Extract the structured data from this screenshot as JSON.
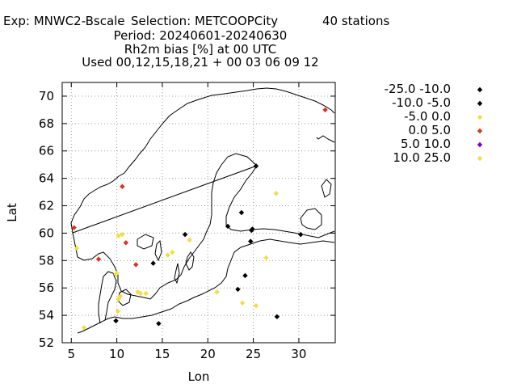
{
  "header": {
    "line1_exp": "Exp: MNWC2-Bscale",
    "line1_sel": "Selection: METCOOPCity",
    "line1_count": "40 stations",
    "line2": "Period: 20240601-20240630",
    "line3": "Rh2m bias [%] at  00 UTC",
    "line4": "Used 00,12,15,18,21 + 00 03 06 09 12"
  },
  "chart_data": {
    "type": "scatter",
    "xlabel": "Lon",
    "ylabel": "Lat",
    "xlim": [
      4,
      34
    ],
    "ylim": [
      52,
      71
    ],
    "xticks": [
      5,
      10,
      15,
      20,
      25,
      30
    ],
    "yticks": [
      52,
      54,
      56,
      58,
      60,
      62,
      64,
      66,
      68,
      70
    ],
    "grid": true,
    "legend_placement": "right",
    "classes": [
      {
        "label": "-25.0 -10.0",
        "color": "#000000"
      },
      {
        "label": "-10.0 -5.0",
        "color": "#000000"
      },
      {
        "label": "-5.0 0.0",
        "color": "#f0e040"
      },
      {
        "label": "0.0 5.0",
        "color": "#e03020"
      },
      {
        "label": "5.0 10.0",
        "color": "#8000c0"
      },
      {
        "label": "10.0 25.0",
        "color": "#f0e040"
      }
    ],
    "points": [
      {
        "lon": 32.9,
        "lat": 69.0,
        "cls": 3
      },
      {
        "lon": 25.3,
        "lat": 64.9,
        "cls": 1
      },
      {
        "lon": 27.5,
        "lat": 62.9,
        "cls": 2
      },
      {
        "lon": 23.7,
        "lat": 61.5,
        "cls": 1
      },
      {
        "lon": 22.2,
        "lat": 60.5,
        "cls": 1
      },
      {
        "lon": 24.9,
        "lat": 60.3,
        "cls": 1
      },
      {
        "lon": 24.8,
        "lat": 60.2,
        "cls": 1
      },
      {
        "lon": 30.2,
        "lat": 59.9,
        "cls": 1
      },
      {
        "lon": 24.7,
        "lat": 59.4,
        "cls": 1
      },
      {
        "lon": 26.4,
        "lat": 58.2,
        "cls": 2
      },
      {
        "lon": 24.1,
        "lat": 56.9,
        "cls": 1
      },
      {
        "lon": 23.3,
        "lat": 55.9,
        "cls": 1
      },
      {
        "lon": 23.8,
        "lat": 54.9,
        "cls": 2
      },
      {
        "lon": 25.3,
        "lat": 54.7,
        "cls": 2
      },
      {
        "lon": 27.6,
        "lat": 53.9,
        "cls": 1
      },
      {
        "lon": 10.6,
        "lat": 63.4,
        "cls": 3
      },
      {
        "lon": 5.3,
        "lat": 60.4,
        "cls": 3
      },
      {
        "lon": 10.2,
        "lat": 59.8,
        "cls": 2
      },
      {
        "lon": 10.6,
        "lat": 59.9,
        "cls": 2
      },
      {
        "lon": 11.0,
        "lat": 59.3,
        "cls": 3
      },
      {
        "lon": 5.6,
        "lat": 58.9,
        "cls": 2
      },
      {
        "lon": 8.0,
        "lat": 58.1,
        "cls": 3
      },
      {
        "lon": 17.5,
        "lat": 59.9,
        "cls": 1
      },
      {
        "lon": 18.0,
        "lat": 59.5,
        "cls": 2
      },
      {
        "lon": 16.1,
        "lat": 58.6,
        "cls": 2
      },
      {
        "lon": 15.6,
        "lat": 58.4,
        "cls": 2
      },
      {
        "lon": 14.0,
        "lat": 57.8,
        "cls": 1
      },
      {
        "lon": 12.1,
        "lat": 57.7,
        "cls": 3
      },
      {
        "lon": 10.0,
        "lat": 57.1,
        "cls": 2
      },
      {
        "lon": 12.3,
        "lat": 55.7,
        "cls": 2
      },
      {
        "lon": 12.6,
        "lat": 55.6,
        "cls": 2
      },
      {
        "lon": 13.2,
        "lat": 55.6,
        "cls": 2
      },
      {
        "lon": 10.4,
        "lat": 55.4,
        "cls": 2
      },
      {
        "lon": 10.2,
        "lat": 55.2,
        "cls": 2
      },
      {
        "lon": 10.1,
        "lat": 54.3,
        "cls": 2
      },
      {
        "lon": 9.9,
        "lat": 53.6,
        "cls": 1
      },
      {
        "lon": 6.4,
        "lat": 53.1,
        "cls": 2
      },
      {
        "lon": 14.6,
        "lat": 53.4,
        "cls": 1
      },
      {
        "lon": 21.0,
        "lat": 55.7,
        "cls": 2
      },
      {
        "lon": 9.9,
        "lat": 57.0,
        "cls": 2
      }
    ]
  }
}
